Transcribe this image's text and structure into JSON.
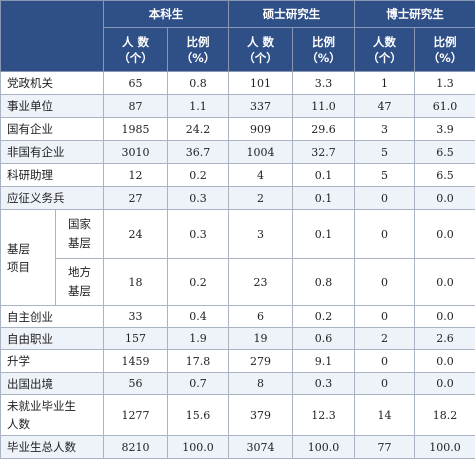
{
  "header": {
    "groups": [
      "本科生",
      "硕士研究生",
      "博士研究生"
    ],
    "sub": [
      {
        "l1": "人 数",
        "l2": "（个）"
      },
      {
        "l1": "比例",
        "l2": "（%）"
      },
      {
        "l1": "人 数",
        "l2": "（个）"
      },
      {
        "l1": "比例",
        "l2": "（%）"
      },
      {
        "l1": "人数",
        "l2": "（个）"
      },
      {
        "l1": "比例",
        "l2": "（%）"
      }
    ]
  },
  "rows": [
    {
      "label": "党政机关",
      "v": [
        "65",
        "0.8",
        "101",
        "3.3",
        "1",
        "1.3"
      ]
    },
    {
      "label": "事业单位",
      "v": [
        "87",
        "1.1",
        "337",
        "11.0",
        "47",
        "61.0"
      ]
    },
    {
      "label": "国有企业",
      "v": [
        "1985",
        "24.2",
        "909",
        "29.6",
        "3",
        "3.9"
      ]
    },
    {
      "label": "非国有企业",
      "v": [
        "3010",
        "36.7",
        "1004",
        "32.7",
        "5",
        "6.5"
      ]
    },
    {
      "label": "科研助理",
      "v": [
        "12",
        "0.2",
        "4",
        "0.1",
        "5",
        "6.5"
      ]
    },
    {
      "label": "应征义务兵",
      "v": [
        "27",
        "0.3",
        "2",
        "0.1",
        "0",
        "0.0"
      ]
    }
  ],
  "grassroots": {
    "label_l1": "基层",
    "label_l2": "项目",
    "rows": [
      {
        "l1": "国家",
        "l2": "基层",
        "v": [
          "24",
          "0.3",
          "3",
          "0.1",
          "0",
          "0.0"
        ]
      },
      {
        "l1": "地方",
        "l2": "基层",
        "v": [
          "18",
          "0.2",
          "23",
          "0.8",
          "0",
          "0.0"
        ]
      }
    ]
  },
  "rows2": [
    {
      "label": "自主创业",
      "v": [
        "33",
        "0.4",
        "6",
        "0.2",
        "0",
        "0.0"
      ]
    },
    {
      "label": "自由职业",
      "v": [
        "157",
        "1.9",
        "19",
        "0.6",
        "2",
        "2.6"
      ]
    },
    {
      "label": "升学",
      "v": [
        "1459",
        "17.8",
        "279",
        "9.1",
        "0",
        "0.0"
      ]
    },
    {
      "label": "出国出境",
      "v": [
        "56",
        "0.7",
        "8",
        "0.3",
        "0",
        "0.0"
      ]
    }
  ],
  "unemployed": {
    "l1": "未就业毕业生",
    "l2": "人数",
    "v": [
      "1277",
      "15.6",
      "379",
      "12.3",
      "14",
      "18.2"
    ]
  },
  "total": {
    "label": "毕业生总人数",
    "v": [
      "8210",
      "100.0",
      "3074",
      "100.0",
      "77",
      "100.0"
    ]
  }
}
